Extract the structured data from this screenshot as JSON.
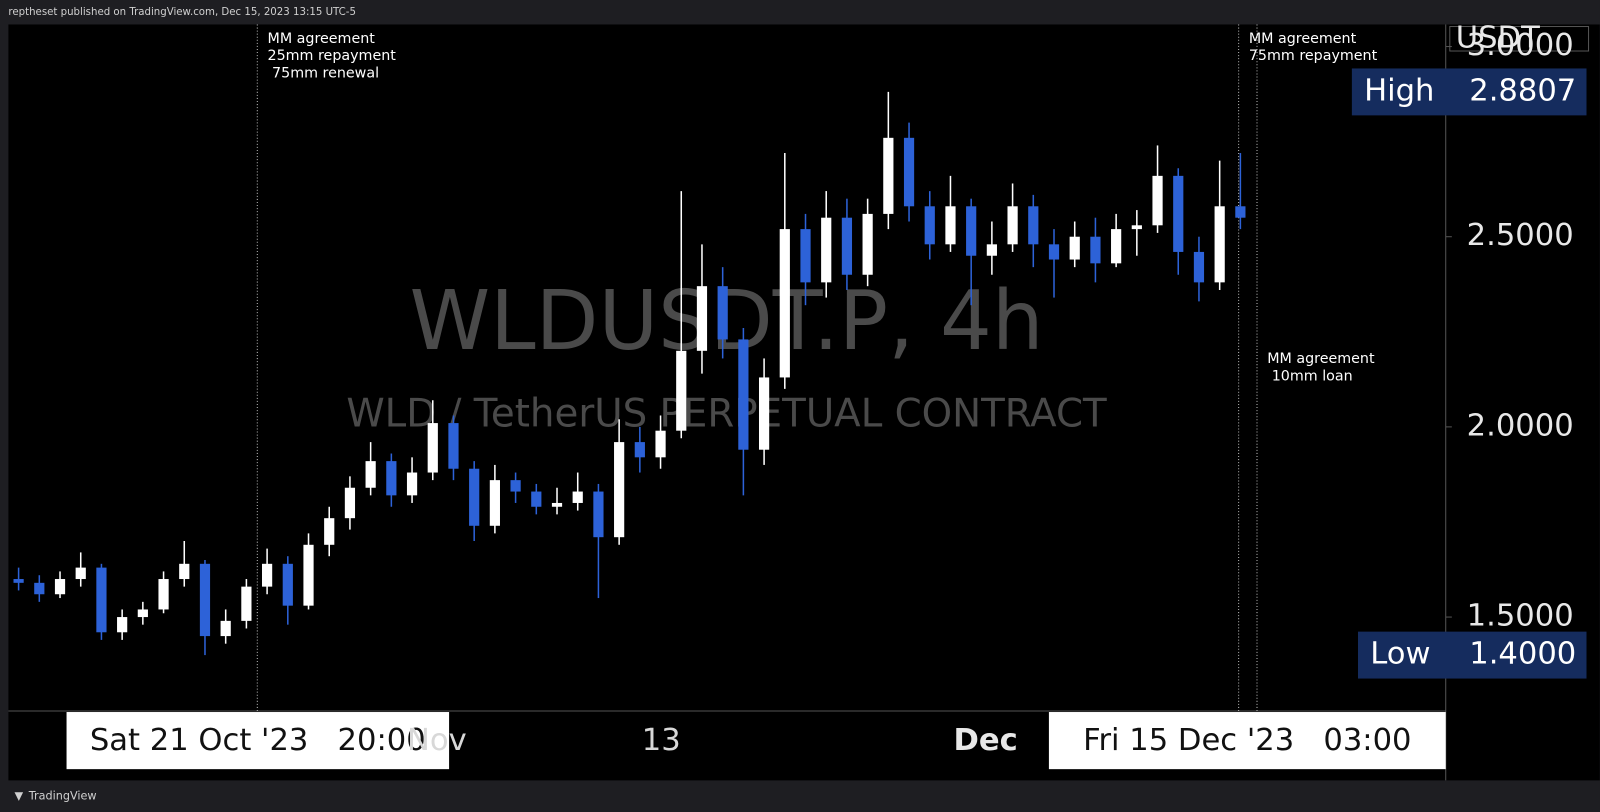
{
  "header": "reptheset published on TradingView.com, Dec 15, 2023 13:15 UTC-5",
  "footer": "TradingView",
  "chart_data": {
    "type": "candlestick",
    "title": "WLDUSDT.P, 4h",
    "subtitle": "WLD / TetherUS PERPETUAL CONTRACT",
    "y_axis_label": "USDT",
    "up_color": "#ffffff",
    "down_color": "#2d62d8",
    "ylim": [
      1.253,
      3.058
    ],
    "yticks": [
      {
        "value": 1.5,
        "label": "1.5000"
      },
      {
        "value": 2.0,
        "label": "2.0000"
      },
      {
        "value": 2.5,
        "label": "2.5000"
      },
      {
        "value": 3.0,
        "label": "3.0000"
      }
    ],
    "x_labels": [
      "Nov",
      "13",
      "Dec"
    ],
    "crosshair_labels": [
      "Sat 21 Oct '23   20:00",
      "Fri 15 Dec '23   03:00"
    ],
    "markers": [
      {
        "name": "High",
        "value": 2.8807,
        "value_label": "2.8807"
      },
      {
        "name": "Low",
        "value": 1.4,
        "value_label": "1.4000"
      }
    ],
    "annotations": [
      {
        "lines": [
          "MM agreement",
          "25mm repayment",
          " 75mm renewal"
        ]
      },
      {
        "lines": [
          "MM agreement",
          "75mm repayment"
        ]
      },
      {
        "lines": [
          "MM agreement",
          " 10mm loan"
        ]
      }
    ],
    "ohlc": [
      [
        1.6,
        1.63,
        1.57,
        1.59
      ],
      [
        1.59,
        1.61,
        1.54,
        1.56
      ],
      [
        1.56,
        1.62,
        1.55,
        1.6
      ],
      [
        1.6,
        1.67,
        1.58,
        1.63
      ],
      [
        1.63,
        1.64,
        1.44,
        1.46
      ],
      [
        1.46,
        1.52,
        1.44,
        1.5
      ],
      [
        1.5,
        1.54,
        1.48,
        1.52
      ],
      [
        1.52,
        1.62,
        1.51,
        1.6
      ],
      [
        1.6,
        1.7,
        1.58,
        1.64
      ],
      [
        1.64,
        1.65,
        1.4,
        1.45
      ],
      [
        1.45,
        1.52,
        1.43,
        1.49
      ],
      [
        1.49,
        1.6,
        1.47,
        1.58
      ],
      [
        1.58,
        1.68,
        1.56,
        1.64
      ],
      [
        1.64,
        1.66,
        1.48,
        1.53
      ],
      [
        1.53,
        1.72,
        1.52,
        1.69
      ],
      [
        1.69,
        1.79,
        1.66,
        1.76
      ],
      [
        1.76,
        1.87,
        1.73,
        1.84
      ],
      [
        1.84,
        1.96,
        1.82,
        1.91
      ],
      [
        1.91,
        1.93,
        1.79,
        1.82
      ],
      [
        1.82,
        1.92,
        1.8,
        1.88
      ],
      [
        1.88,
        2.07,
        1.86,
        2.01
      ],
      [
        2.01,
        2.03,
        1.86,
        1.89
      ],
      [
        1.89,
        1.91,
        1.7,
        1.74
      ],
      [
        1.74,
        1.9,
        1.72,
        1.86
      ],
      [
        1.86,
        1.88,
        1.8,
        1.83
      ],
      [
        1.83,
        1.85,
        1.77,
        1.79
      ],
      [
        1.79,
        1.84,
        1.77,
        1.8
      ],
      [
        1.8,
        1.88,
        1.78,
        1.83
      ],
      [
        1.83,
        1.85,
        1.55,
        1.71
      ],
      [
        1.71,
        2.02,
        1.69,
        1.96
      ],
      [
        1.96,
        2.0,
        1.88,
        1.92
      ],
      [
        1.92,
        2.03,
        1.89,
        1.99
      ],
      [
        1.99,
        2.62,
        1.97,
        2.2
      ],
      [
        2.2,
        2.48,
        2.14,
        2.37
      ],
      [
        2.37,
        2.42,
        2.18,
        2.23
      ],
      [
        2.23,
        2.26,
        1.82,
        1.94
      ],
      [
        1.94,
        2.18,
        1.9,
        2.13
      ],
      [
        2.13,
        2.72,
        2.1,
        2.52
      ],
      [
        2.52,
        2.56,
        2.32,
        2.38
      ],
      [
        2.38,
        2.62,
        2.34,
        2.55
      ],
      [
        2.55,
        2.6,
        2.36,
        2.4
      ],
      [
        2.4,
        2.6,
        2.37,
        2.56
      ],
      [
        2.56,
        2.8807,
        2.52,
        2.76
      ],
      [
        2.76,
        2.8,
        2.54,
        2.58
      ],
      [
        2.58,
        2.62,
        2.44,
        2.48
      ],
      [
        2.48,
        2.66,
        2.46,
        2.58
      ],
      [
        2.58,
        2.6,
        2.32,
        2.45
      ],
      [
        2.45,
        2.54,
        2.4,
        2.48
      ],
      [
        2.48,
        2.64,
        2.46,
        2.58
      ],
      [
        2.58,
        2.61,
        2.42,
        2.48
      ],
      [
        2.48,
        2.52,
        2.34,
        2.44
      ],
      [
        2.44,
        2.54,
        2.42,
        2.5
      ],
      [
        2.5,
        2.55,
        2.38,
        2.43
      ],
      [
        2.43,
        2.56,
        2.42,
        2.52
      ],
      [
        2.52,
        2.57,
        2.45,
        2.53
      ],
      [
        2.53,
        2.74,
        2.51,
        2.66
      ],
      [
        2.66,
        2.68,
        2.4,
        2.46
      ],
      [
        2.46,
        2.5,
        2.33,
        2.38
      ],
      [
        2.38,
        2.7,
        2.36,
        2.58
      ],
      [
        2.58,
        2.72,
        2.52,
        2.55
      ]
    ]
  }
}
